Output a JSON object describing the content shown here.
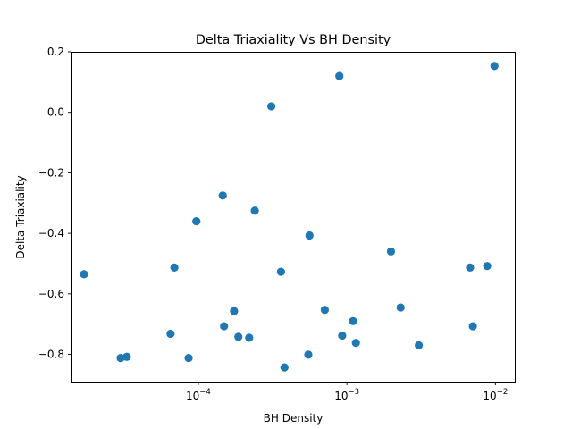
{
  "chart_data": {
    "type": "scatter",
    "title": "Delta Triaxiality Vs BH Density",
    "xlabel": "BH Density",
    "ylabel": "Delta Triaxiality",
    "xscale": "log",
    "xlim": [
      1.4e-05,
      0.0135
    ],
    "ylim": [
      -0.89,
      0.2
    ],
    "x_ticks": [
      {
        "value": 0.0001,
        "base": "10",
        "exp": "−4"
      },
      {
        "value": 0.001,
        "base": "10",
        "exp": "−3"
      },
      {
        "value": 0.01,
        "base": "10",
        "exp": "−2"
      }
    ],
    "y_ticks": [
      {
        "value": 0.2,
        "label": "0.2"
      },
      {
        "value": 0.0,
        "label": "0.0"
      },
      {
        "value": -0.2,
        "label": "−0.2"
      },
      {
        "value": -0.4,
        "label": "−0.4"
      },
      {
        "value": -0.6,
        "label": "−0.6"
      },
      {
        "value": -0.8,
        "label": "−0.8"
      }
    ],
    "marker_color": "#1f77b4",
    "grid": false,
    "points": [
      {
        "x": 1.7e-05,
        "y": -0.535
      },
      {
        "x": 3e-05,
        "y": -0.812
      },
      {
        "x": 3.3e-05,
        "y": -0.808
      },
      {
        "x": 6.5e-05,
        "y": -0.732
      },
      {
        "x": 6.9e-05,
        "y": -0.513
      },
      {
        "x": 8.6e-05,
        "y": -0.812
      },
      {
        "x": 9.7e-05,
        "y": -0.36
      },
      {
        "x": 0.000146,
        "y": -0.275
      },
      {
        "x": 0.000149,
        "y": -0.707
      },
      {
        "x": 0.000174,
        "y": -0.657
      },
      {
        "x": 0.000186,
        "y": -0.742
      },
      {
        "x": 0.00022,
        "y": -0.745
      },
      {
        "x": 0.00024,
        "y": -0.325
      },
      {
        "x": 0.00031,
        "y": 0.02
      },
      {
        "x": 0.00036,
        "y": -0.527
      },
      {
        "x": 0.00038,
        "y": -0.843
      },
      {
        "x": 0.00055,
        "y": -0.801
      },
      {
        "x": 0.00056,
        "y": -0.407
      },
      {
        "x": 0.00071,
        "y": -0.653
      },
      {
        "x": 0.00089,
        "y": 0.12
      },
      {
        "x": 0.00093,
        "y": -0.738
      },
      {
        "x": 0.0011,
        "y": -0.69
      },
      {
        "x": 0.00115,
        "y": -0.762
      },
      {
        "x": 0.00198,
        "y": -0.46
      },
      {
        "x": 0.0023,
        "y": -0.645
      },
      {
        "x": 0.00305,
        "y": -0.77
      },
      {
        "x": 0.00675,
        "y": -0.513
      },
      {
        "x": 0.00705,
        "y": -0.707
      },
      {
        "x": 0.0088,
        "y": -0.508
      },
      {
        "x": 0.00985,
        "y": 0.153
      }
    ]
  }
}
